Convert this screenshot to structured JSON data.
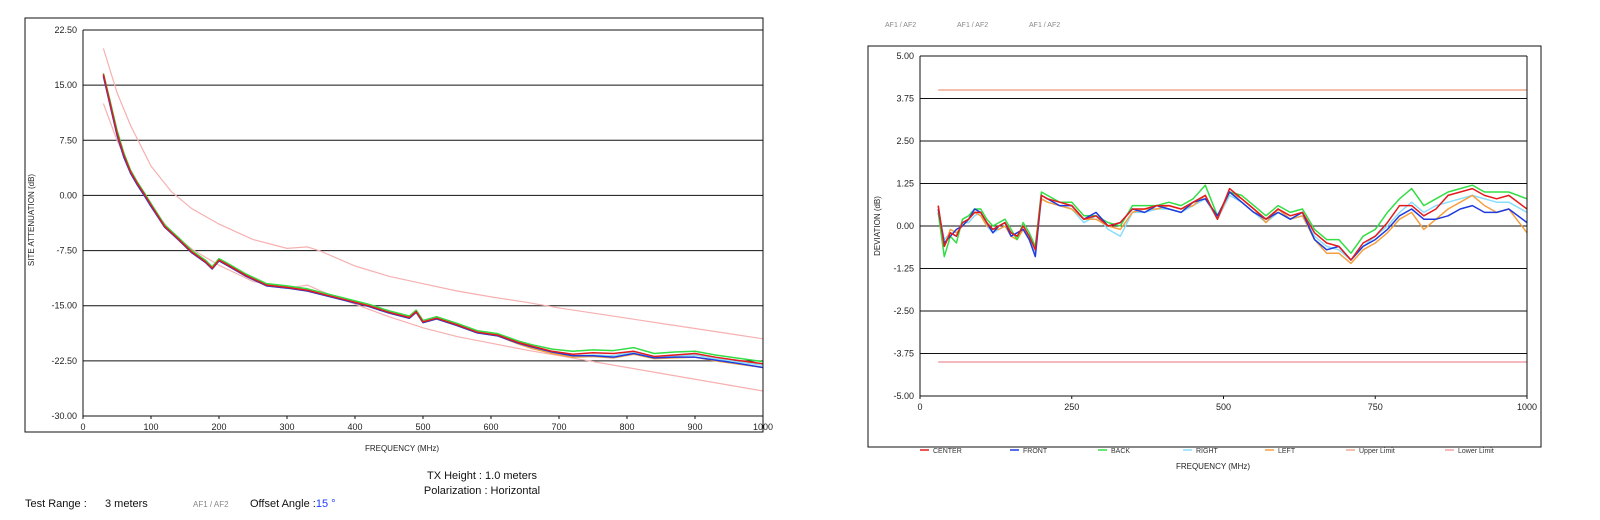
{
  "header": {
    "af_tags": [
      "AF1 / AF2",
      "AF1 / AF2",
      "AF1 / AF2"
    ]
  },
  "info": {
    "tx_height": "TX Height : 1.0 meters",
    "polarization": "Polarization : Horizontal",
    "test_range_label": "Test Range :",
    "test_range_value": "3 meters",
    "af_tag": "AF1 / AF2",
    "offset_label": "Offset Angle :",
    "offset_value": "15 °"
  },
  "chart_data": [
    {
      "type": "line",
      "title": "",
      "xlabel": "FREQUENCY (MHz)",
      "ylabel": "SITE ATTENUATION (dB)",
      "xlim": [
        0,
        1000
      ],
      "ylim": [
        -30,
        22.5
      ],
      "xticks": [
        "0",
        "100",
        "200",
        "300",
        "400",
        "500",
        "600",
        "700",
        "800",
        "900",
        "1000"
      ],
      "yticks": [
        "22.50",
        "15.00",
        "7.50",
        "0.00",
        "-7.50",
        "-15.00",
        "-22.50",
        "-30.00"
      ],
      "grid": "horizontal",
      "colors": [
        "#e41a1c",
        "#1f3bdf",
        "#33dd44",
        "#88ddff",
        "#f5a040"
      ],
      "limit_color": "#f7b0b0",
      "x": [
        30,
        40,
        50,
        60,
        70,
        80,
        90,
        100,
        120,
        140,
        160,
        180,
        190,
        200,
        210,
        240,
        270,
        300,
        330,
        360,
        390,
        420,
        450,
        480,
        490,
        500,
        520,
        550,
        580,
        610,
        640,
        660,
        690,
        720,
        750,
        780,
        810,
        840,
        870,
        900,
        930,
        960,
        1000
      ],
      "series": [
        {
          "values": [
            16.5,
            12.5,
            8.5,
            5.5,
            3.2,
            1.6,
            0.2,
            -1.3,
            -4.2,
            -5.9,
            -7.7,
            -9.0,
            -9.9,
            -8.8,
            -9.3,
            -10.9,
            -12.2,
            -12.5,
            -12.9,
            -13.6,
            -14.3,
            -15.0,
            -15.9,
            -16.6,
            -15.8,
            -17.2,
            -16.7,
            -17.6,
            -18.6,
            -19.0,
            -20.0,
            -20.5,
            -21.2,
            -21.6,
            -21.4,
            -21.5,
            -21.2,
            -21.9,
            -21.7,
            -21.5,
            -22.0,
            -22.4,
            -22.9
          ]
        },
        {
          "values": [
            16.2,
            12.2,
            8.2,
            5.2,
            3.0,
            1.4,
            0.0,
            -1.5,
            -4.3,
            -6.0,
            -7.8,
            -9.1,
            -10.0,
            -8.9,
            -9.4,
            -11.0,
            -12.3,
            -12.6,
            -13.0,
            -13.7,
            -14.4,
            -15.1,
            -16.0,
            -16.7,
            -15.9,
            -17.3,
            -16.8,
            -17.7,
            -18.7,
            -19.1,
            -20.1,
            -20.6,
            -21.3,
            -21.8,
            -21.8,
            -22.0,
            -21.5,
            -22.1,
            -22.0,
            -22.0,
            -22.4,
            -22.8,
            -23.4
          ]
        },
        {
          "values": [
            16.6,
            12.8,
            8.9,
            5.8,
            3.4,
            1.8,
            0.4,
            -1.1,
            -4.0,
            -5.7,
            -7.5,
            -8.8,
            -9.7,
            -8.6,
            -9.1,
            -10.7,
            -12.0,
            -12.3,
            -12.7,
            -13.4,
            -14.1,
            -14.8,
            -15.7,
            -16.4,
            -15.6,
            -17.0,
            -16.5,
            -17.4,
            -18.4,
            -18.8,
            -19.8,
            -20.3,
            -20.9,
            -21.2,
            -21.0,
            -21.1,
            -20.7,
            -21.5,
            -21.3,
            -21.2,
            -21.7,
            -22.1,
            -22.6
          ]
        },
        {
          "values": [
            16.4,
            12.4,
            8.4,
            5.4,
            3.1,
            1.5,
            0.1,
            -1.4,
            -4.2,
            -5.9,
            -7.7,
            -9.0,
            -9.9,
            -8.8,
            -9.3,
            -10.9,
            -12.2,
            -12.5,
            -12.9,
            -13.6,
            -14.3,
            -15.0,
            -15.9,
            -16.6,
            -15.8,
            -17.2,
            -16.7,
            -17.6,
            -18.6,
            -19.0,
            -20.0,
            -20.6,
            -21.3,
            -21.8,
            -21.7,
            -21.8,
            -21.3,
            -21.9,
            -21.8,
            -21.7,
            -22.2,
            -22.6,
            -23.1
          ]
        },
        {
          "values": [
            16.3,
            12.3,
            8.3,
            5.3,
            3.1,
            1.5,
            0.1,
            -1.4,
            -4.3,
            -6.0,
            -7.8,
            -9.1,
            -10.0,
            -8.9,
            -9.4,
            -11.0,
            -12.3,
            -12.6,
            -13.0,
            -13.7,
            -14.4,
            -15.1,
            -16.0,
            -16.7,
            -15.9,
            -17.3,
            -16.8,
            -17.7,
            -18.7,
            -19.1,
            -20.2,
            -20.8,
            -21.5,
            -22.0,
            -21.9,
            -22.1,
            -21.6,
            -22.2,
            -22.1,
            -22.0,
            -22.5,
            -22.9,
            -23.4
          ]
        }
      ],
      "limits": {
        "x": [
          30,
          50,
          70,
          100,
          130,
          160,
          200,
          250,
          300,
          330,
          350,
          400,
          450,
          500,
          550,
          600,
          650,
          700,
          750,
          800,
          850,
          900,
          950,
          1000
        ],
        "upper": [
          20.0,
          14.0,
          9.5,
          4.0,
          0.5,
          -1.8,
          -3.9,
          -6.0,
          -7.2,
          -7.0,
          -7.6,
          -9.6,
          -11.0,
          -12.0,
          -13.0,
          -13.8,
          -14.5,
          -15.3,
          -16.0,
          -16.7,
          -17.4,
          -18.1,
          -18.8,
          -19.5
        ],
        "lower": [
          12.5,
          7.5,
          3.5,
          -1.5,
          -5.0,
          -7.3,
          -9.5,
          -11.7,
          -12.6,
          -12.2,
          -13.0,
          -14.8,
          -16.5,
          -18.0,
          -19.2,
          -20.1,
          -21.0,
          -21.8,
          -22.6,
          -23.4,
          -24.2,
          -25.0,
          -25.8,
          -26.6
        ]
      }
    },
    {
      "type": "line",
      "title": "",
      "xlabel": "FREQUENCY (MHz)",
      "ylabel": "DEVIATION (dB)",
      "xlim": [
        0,
        1000
      ],
      "ylim": [
        -5,
        5
      ],
      "xticks": [
        "0",
        "250",
        "500",
        "750",
        "1000"
      ],
      "yticks": [
        "5.00",
        "3.75",
        "2.50",
        "1.25",
        "0.00",
        "-1.25",
        "-2.50",
        "-3.75",
        "-5.00"
      ],
      "grid": "horizontal",
      "legend_position": "bottom",
      "legend": [
        "CENTER",
        "FRONT",
        "BACK",
        "RIGHT",
        "LEFT",
        "Upper Limit",
        "Lower Limit"
      ],
      "colors": [
        "#e41a1c",
        "#1f3bdf",
        "#33dd44",
        "#88ddff",
        "#f5a040",
        "#f0a890",
        "#f2a0a8"
      ],
      "upper_limit": 4.0,
      "lower_limit": -4.0,
      "x": [
        30,
        40,
        50,
        60,
        70,
        80,
        90,
        100,
        110,
        120,
        130,
        140,
        150,
        160,
        170,
        180,
        190,
        200,
        210,
        230,
        250,
        270,
        290,
        310,
        330,
        350,
        370,
        390,
        410,
        430,
        450,
        470,
        490,
        510,
        530,
        550,
        570,
        590,
        610,
        630,
        650,
        670,
        690,
        710,
        730,
        750,
        770,
        790,
        810,
        830,
        850,
        870,
        890,
        910,
        930,
        950,
        970,
        1000
      ],
      "series": [
        {
          "values": [
            0.6,
            -0.6,
            -0.2,
            -0.3,
            0.1,
            0.2,
            0.4,
            0.4,
            0.1,
            -0.1,
            0.0,
            0.1,
            -0.2,
            -0.3,
            0.0,
            -0.3,
            -0.7,
            0.9,
            0.8,
            0.7,
            0.6,
            0.2,
            0.3,
            0.0,
            0.1,
            0.5,
            0.5,
            0.6,
            0.6,
            0.5,
            0.7,
            0.9,
            0.2,
            1.1,
            0.8,
            0.5,
            0.2,
            0.5,
            0.3,
            0.4,
            -0.2,
            -0.5,
            -0.6,
            -1.0,
            -0.5,
            -0.3,
            0.1,
            0.6,
            0.6,
            0.3,
            0.5,
            0.9,
            1.0,
            1.1,
            0.9,
            0.8,
            0.9,
            0.5
          ]
        },
        {
          "values": [
            0.5,
            -0.5,
            -0.3,
            -0.1,
            0.0,
            0.2,
            0.5,
            0.4,
            0.1,
            -0.2,
            0.0,
            0.1,
            -0.3,
            -0.2,
            -0.1,
            -0.4,
            -0.9,
            0.9,
            0.8,
            0.6,
            0.6,
            0.2,
            0.4,
            0.0,
            0.1,
            0.5,
            0.4,
            0.6,
            0.5,
            0.4,
            0.7,
            0.8,
            0.3,
            1.0,
            0.7,
            0.4,
            0.2,
            0.4,
            0.2,
            0.4,
            -0.4,
            -0.7,
            -0.6,
            -1.0,
            -0.6,
            -0.4,
            -0.1,
            0.3,
            0.5,
            0.2,
            0.2,
            0.3,
            0.5,
            0.6,
            0.4,
            0.4,
            0.5,
            0.1
          ]
        },
        {
          "values": [
            0.4,
            -0.9,
            -0.3,
            -0.5,
            0.2,
            0.3,
            0.5,
            0.5,
            0.2,
            0.0,
            0.1,
            0.2,
            -0.1,
            -0.4,
            0.1,
            -0.2,
            -0.6,
            1.0,
            0.9,
            0.7,
            0.7,
            0.3,
            0.3,
            0.1,
            0.0,
            0.6,
            0.6,
            0.6,
            0.7,
            0.6,
            0.8,
            1.2,
            0.3,
            1.0,
            0.9,
            0.6,
            0.3,
            0.6,
            0.4,
            0.5,
            -0.1,
            -0.4,
            -0.4,
            -0.8,
            -0.3,
            -0.1,
            0.4,
            0.8,
            1.1,
            0.6,
            0.8,
            1.0,
            1.1,
            1.2,
            1.0,
            1.0,
            1.0,
            0.8
          ]
        },
        {
          "values": [
            0.5,
            -0.4,
            -0.2,
            -0.3,
            0.1,
            0.1,
            0.3,
            0.4,
            0.0,
            -0.2,
            -0.1,
            0.0,
            -0.2,
            -0.3,
            -0.1,
            -0.3,
            -0.8,
            0.8,
            0.7,
            0.6,
            0.5,
            0.1,
            0.3,
            -0.1,
            -0.3,
            0.4,
            0.4,
            0.5,
            0.5,
            0.4,
            0.6,
            0.8,
            0.2,
            0.9,
            0.7,
            0.4,
            0.1,
            0.4,
            0.2,
            0.3,
            -0.3,
            -0.6,
            -0.7,
            -1.0,
            -0.6,
            -0.3,
            0.0,
            0.4,
            0.7,
            0.4,
            0.6,
            0.7,
            0.8,
            0.9,
            0.8,
            0.7,
            0.7,
            0.4
          ]
        },
        {
          "values": [
            0.6,
            -0.6,
            -0.1,
            -0.2,
            0.0,
            0.2,
            0.4,
            0.3,
            0.0,
            -0.1,
            -0.1,
            0.0,
            -0.3,
            -0.4,
            -0.1,
            -0.4,
            -0.6,
            0.8,
            0.7,
            0.6,
            0.5,
            0.2,
            0.2,
            0.0,
            -0.1,
            0.4,
            0.5,
            0.5,
            0.6,
            0.5,
            0.6,
            0.9,
            0.2,
            1.0,
            0.8,
            0.5,
            0.1,
            0.5,
            0.2,
            0.3,
            -0.4,
            -0.8,
            -0.8,
            -1.1,
            -0.7,
            -0.5,
            -0.2,
            0.2,
            0.4,
            -0.1,
            0.2,
            0.5,
            0.7,
            0.9,
            0.6,
            0.4,
            0.5,
            -0.2
          ]
        }
      ]
    }
  ]
}
